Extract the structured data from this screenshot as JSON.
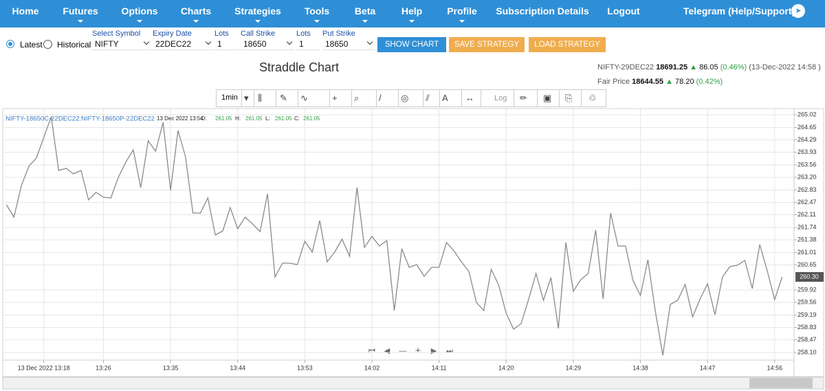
{
  "nav": {
    "items": [
      "Home",
      "Futures",
      "Options",
      "Charts",
      "Strategies",
      "Tools",
      "Beta",
      "Help",
      "Profile",
      "Subscription Details",
      "Logout"
    ],
    "telegram": "Telegram (Help/Support)"
  },
  "form": {
    "radios": [
      "Latest",
      "Historical"
    ],
    "fields": [
      {
        "label": "Select Symbol",
        "value": "NIFTY"
      },
      {
        "label": "Expiry Date",
        "value": "22DEC22"
      },
      {
        "label": "Lots",
        "value": "1"
      },
      {
        "label": "Call Strike",
        "value": "18650"
      },
      {
        "label": "Lots",
        "value": "1"
      },
      {
        "label": "Put Strike",
        "value": "18650"
      }
    ],
    "buttons": [
      "SHOW CHART",
      "SAVE STRATEGY",
      "LOAD STRATEGY"
    ]
  },
  "quote": {
    "symbol": "NIFTY-29DEC22",
    "price": "18691.25",
    "change": "86.05",
    "pct": "(0.46%)",
    "time": "(13-Dec-2022 14:58 )"
  },
  "fair": {
    "label": "Fair Price",
    "price": "18644.55",
    "change": "78.20",
    "pct": "(0.42%)"
  },
  "toolbar": {
    "interval": "1min",
    "log": "Log"
  },
  "chart_data": {
    "type": "line",
    "title": "Straddle Chart",
    "legend": {
      "time": "13 Dec 2022 13:54",
      "ohlc": [
        {
          "label": "O:",
          "value": "261.05"
        },
        {
          "label": "H:",
          "value": "261.05"
        },
        {
          "label": "L:",
          "value": "261.05"
        },
        {
          "label": "C:",
          "value": "261.05"
        }
      ]
    },
    "x": [
      793,
      794,
      795,
      796,
      797,
      798,
      799,
      800,
      801,
      802,
      803,
      804,
      805,
      806,
      807,
      808,
      809,
      810,
      811,
      812,
      813,
      814,
      815,
      816,
      817,
      818,
      819,
      820,
      821,
      822,
      823,
      824,
      825,
      826,
      827,
      828,
      829,
      830,
      831,
      832,
      833,
      834,
      835,
      836,
      837,
      838,
      839,
      840,
      841,
      842,
      843,
      844,
      845,
      846,
      847,
      848,
      849,
      850,
      851,
      852,
      853,
      854,
      855,
      856,
      857,
      858,
      859,
      860,
      861,
      862,
      863,
      864,
      865,
      866,
      867,
      868,
      869,
      870,
      871,
      872,
      873,
      874,
      875,
      876,
      877,
      878,
      879,
      880,
      881,
      882,
      883,
      884,
      885,
      886,
      887,
      888,
      889,
      890,
      891,
      892,
      893,
      894,
      895,
      896,
      897
    ],
    "series": [
      {
        "name": "NIFTY-18650C-22DEC22:NIFTY-18650P-22DEC22",
        "color": "#8a8a8a",
        "values": [
          262.4,
          262.04,
          262.96,
          263.52,
          263.76,
          264.36,
          264.96,
          263.4,
          263.46,
          263.3,
          263.4,
          262.54,
          262.76,
          262.62,
          262.6,
          263.2,
          263.64,
          264.0,
          262.9,
          264.26,
          263.96,
          264.8,
          262.82,
          264.56,
          263.8,
          262.16,
          262.16,
          262.6,
          261.52,
          261.64,
          262.32,
          261.7,
          262.04,
          261.84,
          261.62,
          262.72,
          260.3,
          260.7,
          260.7,
          260.66,
          261.34,
          261.02,
          261.94,
          260.74,
          261.02,
          261.4,
          260.9,
          262.9,
          261.16,
          261.48,
          261.2,
          261.36,
          259.32,
          261.12,
          260.58,
          260.66,
          260.32,
          260.58,
          260.58,
          261.3,
          261.06,
          260.74,
          260.46,
          259.56,
          259.32,
          260.52,
          260.06,
          259.24,
          258.78,
          258.94,
          259.64,
          260.4,
          259.62,
          260.28,
          258.8,
          261.3,
          259.88,
          260.22,
          260.4,
          261.66,
          259.66,
          262.16,
          261.2,
          261.2,
          260.2,
          259.76,
          260.8,
          259.3,
          258.02,
          259.5,
          259.62,
          260.08,
          259.14,
          259.66,
          260.1,
          259.2,
          260.3,
          260.6,
          260.64,
          260.78,
          259.96,
          261.24,
          260.48,
          259.64,
          260.3
        ]
      }
    ],
    "price_label": {
      "value": 260.3,
      "label": "260.30"
    },
    "xlim": [
      792.5,
      898.6
    ],
    "xticks": [
      {
        "value": 798,
        "label": "13 Dec 2022 13:18"
      },
      {
        "value": 806,
        "label": "13:26"
      },
      {
        "value": 815,
        "label": "13:35"
      },
      {
        "value": 824,
        "label": "13:44"
      },
      {
        "value": 833,
        "label": "13:53"
      },
      {
        "value": 842,
        "label": "14:02"
      },
      {
        "value": 851,
        "label": "14:11"
      },
      {
        "value": 860,
        "label": "14:20"
      },
      {
        "value": 869,
        "label": "14:29"
      },
      {
        "value": 878,
        "label": "14:38"
      },
      {
        "value": 887,
        "label": "14:47"
      },
      {
        "value": 896,
        "label": "14:56"
      }
    ],
    "ylim": [
      257.88,
      265.2
    ],
    "yticks": [
      265.02,
      264.65,
      264.29,
      263.93,
      263.56,
      {
        "value": 263.2,
        "label": "263.20"
      },
      262.83,
      262.47,
      262.11,
      261.74,
      261.38,
      261.01,
      260.65,
      259.92,
      259.56,
      259.19,
      258.83,
      258.47,
      {
        "value": 258.1,
        "label": "258.10"
      }
    ],
    "grid": true
  }
}
